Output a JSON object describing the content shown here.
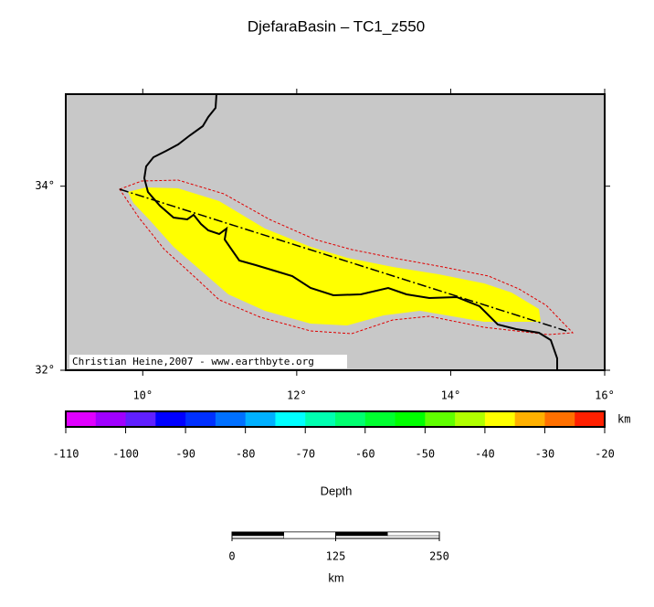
{
  "title": "DjefaraBasin – TC1_z550",
  "map": {
    "xlim": [
      9,
      16
    ],
    "ylim": [
      32,
      35
    ],
    "xticks": [
      {
        "value": 10,
        "label": "10°"
      },
      {
        "value": 12,
        "label": "12°"
      },
      {
        "value": 14,
        "label": "14°"
      },
      {
        "value": 16,
        "label": "16°"
      }
    ],
    "yticks": [
      {
        "value": 32,
        "label": "32°"
      },
      {
        "value": 34,
        "label": "34°"
      }
    ],
    "credit": "Christian Heine,2007 - www.earthbyte.org"
  },
  "colorbar": {
    "label": "Depth",
    "unit": "km",
    "ticks": [
      -110,
      -100,
      -90,
      -80,
      -70,
      -60,
      -50,
      -40,
      -30,
      -20
    ],
    "colors": [
      "#e000ff",
      "#a000ff",
      "#6020ff",
      "#0000ff",
      "#0030ff",
      "#0070ff",
      "#00b0ff",
      "#00ffff",
      "#00ffb0",
      "#00ff70",
      "#00ff30",
      "#00ff00",
      "#60ff00",
      "#b0ff00",
      "#ffff00",
      "#ffb000",
      "#ff7000",
      "#ff2000"
    ]
  },
  "scalebar": {
    "ticks": [
      0,
      125,
      250
    ],
    "unit": "km"
  }
}
